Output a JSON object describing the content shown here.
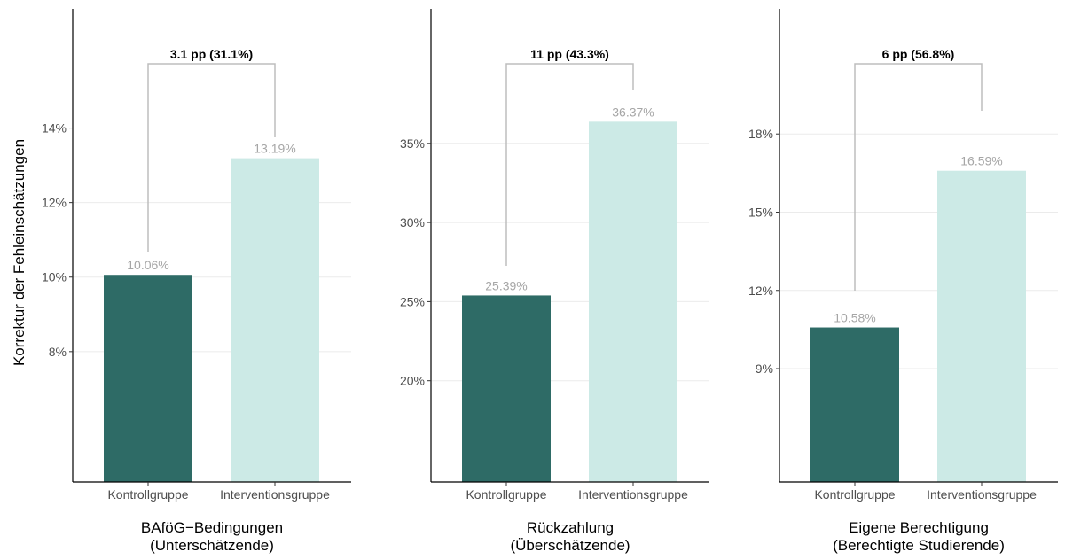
{
  "ylabel": "Korrektur der Fehleinschätzungen",
  "colors": {
    "control": "#2e6b66",
    "intervention": "#cceae6",
    "bracket": "#bdbdbd",
    "value_label": "#a6a6a6",
    "grid": "#ebebeb"
  },
  "chart_data": [
    {
      "type": "bar",
      "title_lines": [
        "BAföG−Bedingungen",
        "(Unterschätzende)"
      ],
      "categories": [
        "Kontrollgruppe",
        "Interventionsgruppe"
      ],
      "values": [
        10.06,
        13.19
      ],
      "value_labels": [
        "10.06%",
        "13.19%"
      ],
      "annotation": "3.1 pp (31.1%)",
      "yticks": [
        8,
        10,
        12,
        14
      ],
      "ytick_labels": [
        "8%",
        "10%",
        "12%",
        "14%"
      ],
      "ylim": [
        4.5,
        17.2
      ]
    },
    {
      "type": "bar",
      "title_lines": [
        "Rückzahlung",
        "(Überschätzende)"
      ],
      "categories": [
        "Kontrollgruppe",
        "Interventionsgruppe"
      ],
      "values": [
        25.39,
        36.37
      ],
      "value_labels": [
        "25.39%",
        "36.37%"
      ],
      "annotation": "11 pp (43.3%)",
      "yticks": [
        20,
        25,
        30,
        35
      ],
      "ytick_labels": [
        "20%",
        "25%",
        "30%",
        "35%"
      ],
      "ylim": [
        13.6,
        43.5
      ]
    },
    {
      "type": "bar",
      "title_lines": [
        "Eigene Berechtigung",
        "(Berechtigte Studierende)"
      ],
      "categories": [
        "Kontrollgruppe",
        "Interventionsgruppe"
      ],
      "values": [
        10.58,
        16.59
      ],
      "value_labels": [
        "10.58%",
        "16.59%"
      ],
      "annotation": "6 pp (56.8%)",
      "yticks": [
        9,
        12,
        15,
        18
      ],
      "ytick_labels": [
        "9%",
        "12%",
        "15%",
        "18%"
      ],
      "ylim": [
        4.65,
        22.8
      ]
    }
  ]
}
